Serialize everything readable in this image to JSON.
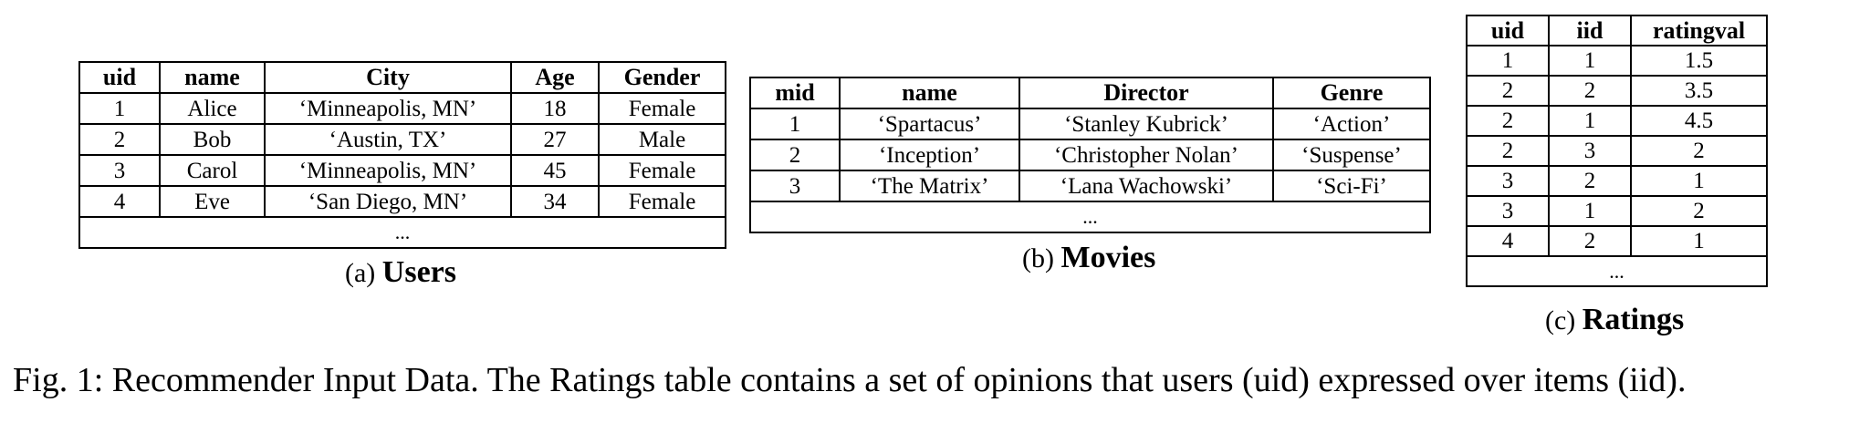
{
  "users": {
    "headers": [
      "uid",
      "name",
      "City",
      "Age",
      "Gender"
    ],
    "rows": [
      [
        "1",
        "Alice",
        "‘Minneapolis, MN’",
        "18",
        "Female"
      ],
      [
        "2",
        "Bob",
        "‘Austin, TX’",
        "27",
        "Male"
      ],
      [
        "3",
        "Carol",
        "‘Minneapolis, MN’",
        "45",
        "Female"
      ],
      [
        "4",
        "Eve",
        "‘San Diego, MN’",
        "34",
        "Female"
      ]
    ],
    "ellipsis": "...",
    "caption_label": "(a)",
    "caption_name": "Users"
  },
  "movies": {
    "headers": [
      "mid",
      "name",
      "Director",
      "Genre"
    ],
    "rows": [
      [
        "1",
        "‘Spartacus’",
        "‘Stanley Kubrick’",
        "‘Action’"
      ],
      [
        "2",
        "‘Inception’",
        "‘Christopher Nolan’",
        "‘Suspense’"
      ],
      [
        "3",
        "‘The Matrix’",
        "‘Lana Wachowski’",
        "‘Sci-Fi’"
      ]
    ],
    "ellipsis": "...",
    "caption_label": "(b)",
    "caption_name": "Movies"
  },
  "ratings": {
    "headers": [
      "uid",
      "iid",
      "ratingval"
    ],
    "rows": [
      [
        "1",
        "1",
        "1.5"
      ],
      [
        "2",
        "2",
        "3.5"
      ],
      [
        "2",
        "1",
        "4.5"
      ],
      [
        "2",
        "3",
        "2"
      ],
      [
        "3",
        "2",
        "1"
      ],
      [
        "3",
        "1",
        "2"
      ],
      [
        "4",
        "2",
        "1"
      ]
    ],
    "ellipsis": "...",
    "caption_label": "(c)",
    "caption_name": "Ratings"
  },
  "figure_caption": "Fig. 1: Recommender Input Data. The Ratings table contains a set of opinions that users (uid) expressed over items (iid)."
}
